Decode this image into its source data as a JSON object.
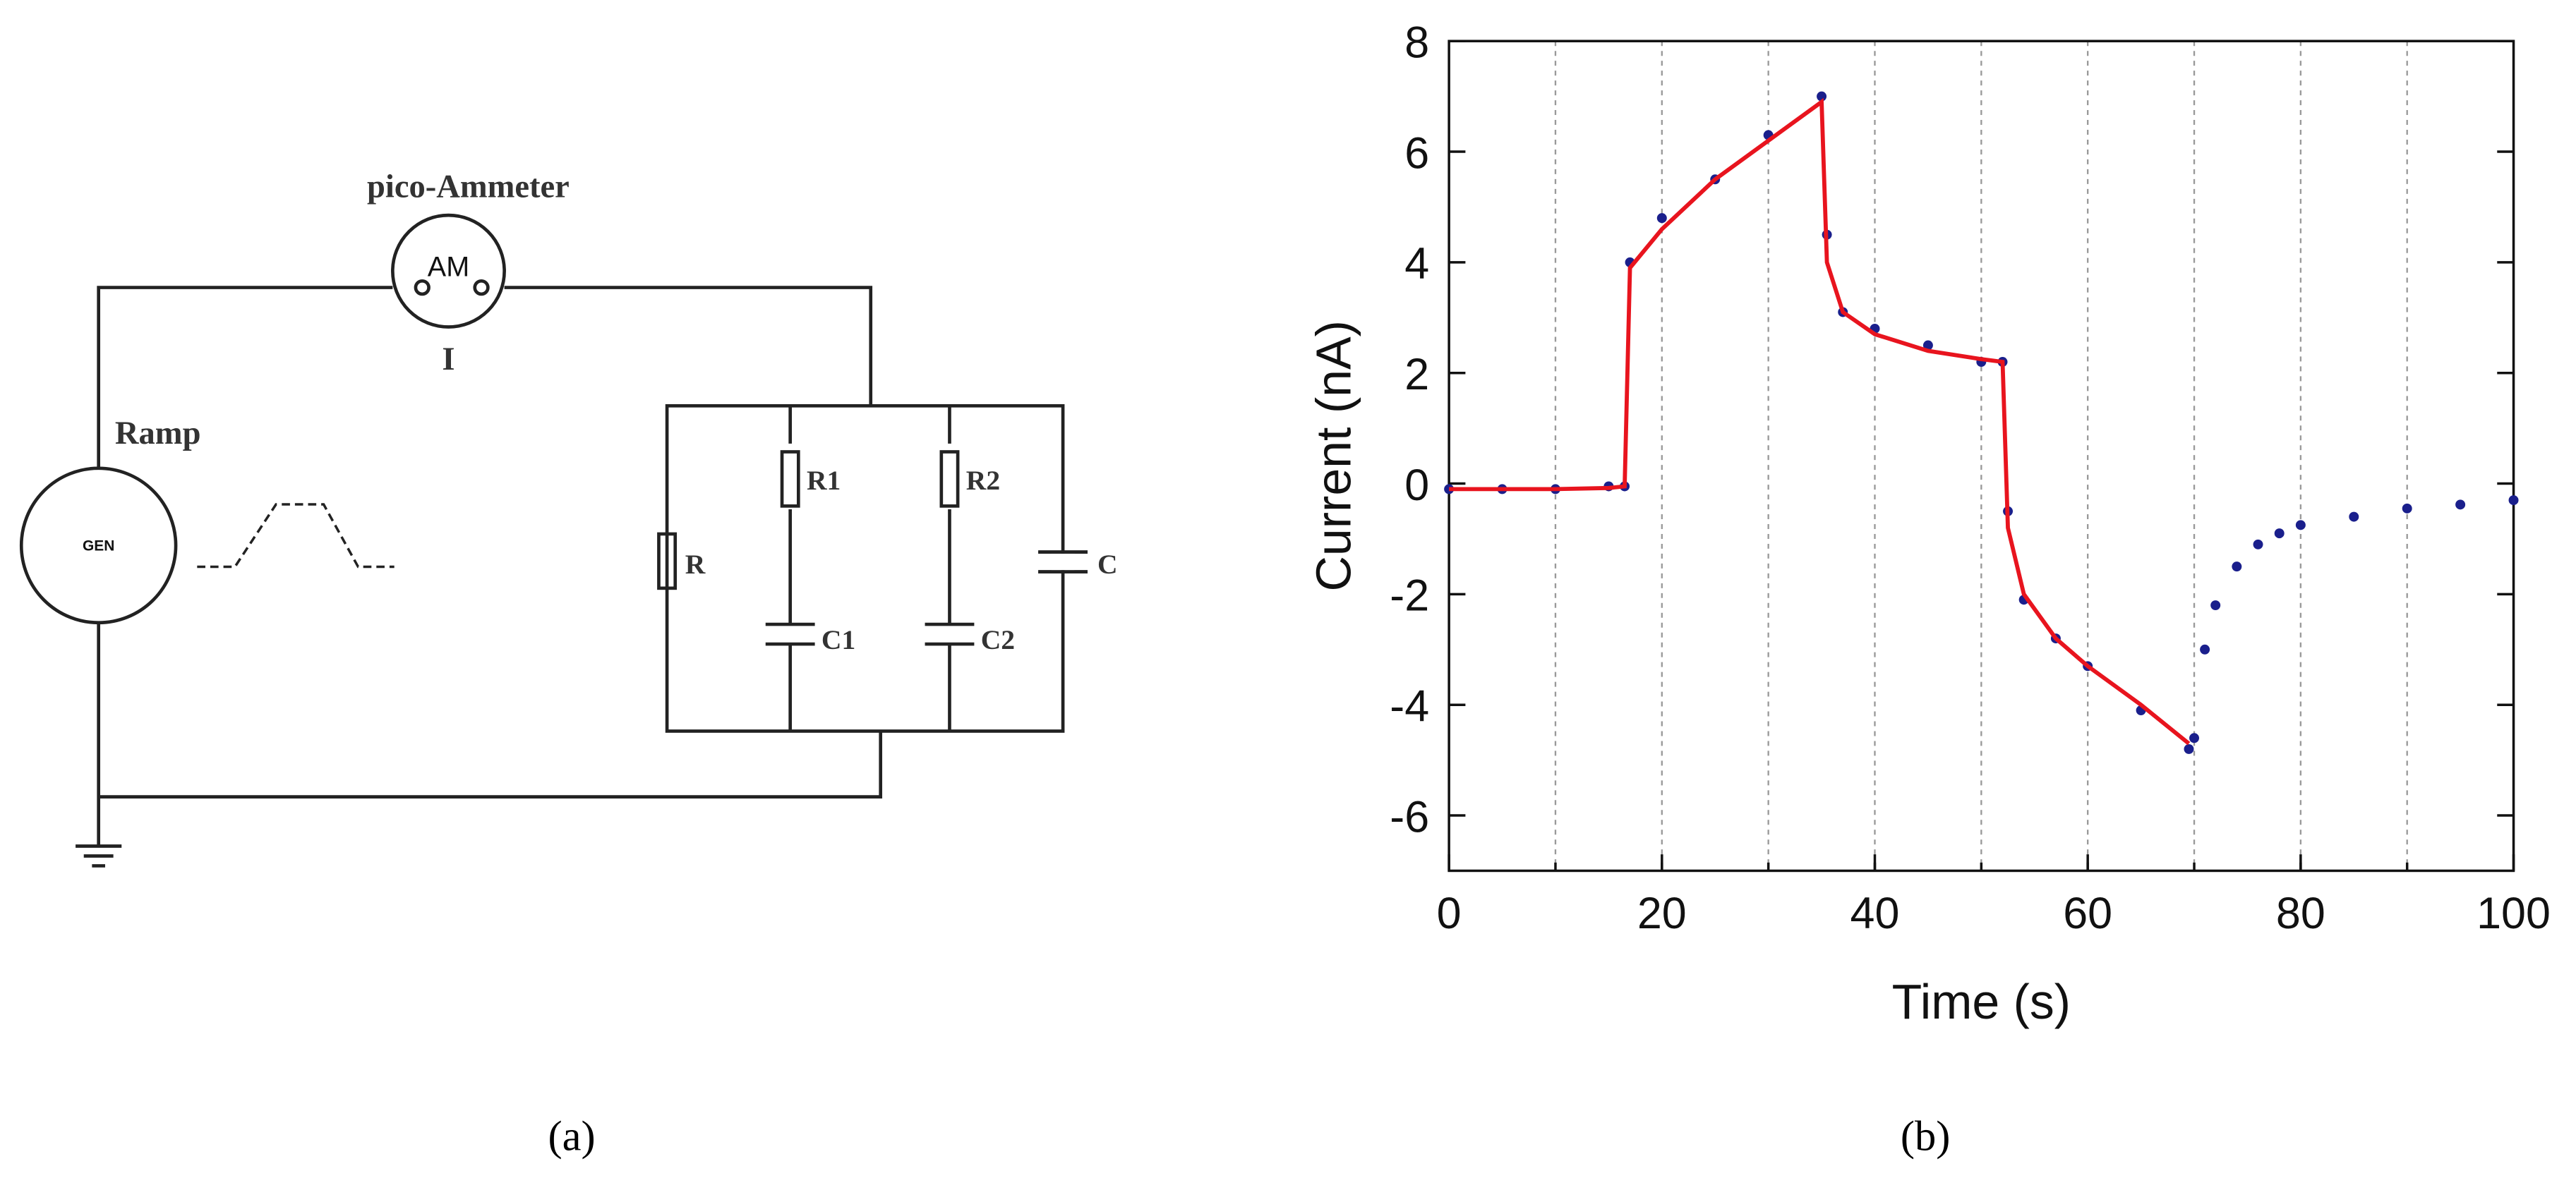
{
  "diagram": {
    "labels": {
      "ammeter": "pico-Ammeter",
      "am": "AM",
      "current": "I",
      "ramp": "Ramp",
      "gen": "GEN",
      "r": "R",
      "r1": "R1",
      "r2": "R2",
      "c": "C",
      "c1": "C1",
      "c2": "C2"
    }
  },
  "panel_labels": [
    "(a)",
    "(b)"
  ],
  "chart_data": {
    "type": "line",
    "x_label": "Time (s)",
    "y_label": "Current (nA)",
    "x": [
      0,
      5,
      10,
      15,
      16.5,
      17,
      20,
      25,
      30,
      35,
      35.5,
      37,
      40,
      45,
      50,
      52,
      52.5,
      54,
      57,
      60,
      65,
      69.5,
      70,
      71,
      72,
      74,
      76,
      78,
      80,
      85,
      90,
      95,
      100
    ],
    "series": [
      {
        "mode": "markers",
        "color": "#1a1f8c",
        "values": [
          -0.1,
          -0.1,
          -0.1,
          -0.05,
          -0.05,
          4.0,
          4.8,
          5.5,
          6.3,
          7.0,
          4.5,
          3.1,
          2.8,
          2.5,
          2.2,
          2.2,
          -0.5,
          -2.1,
          -2.8,
          -3.3,
          -4.1,
          -4.8,
          -4.6,
          -3.0,
          -2.2,
          -1.5,
          -1.1,
          -0.9,
          -0.75,
          -0.6,
          -0.45,
          -0.38,
          -0.3
        ]
      },
      {
        "mode": "line",
        "color": "#e8141e",
        "values": [
          -0.1,
          -0.1,
          -0.1,
          -0.08,
          -0.05,
          3.9,
          4.6,
          5.5,
          6.2,
          6.9,
          4.0,
          3.1,
          2.7,
          2.4,
          2.25,
          2.2,
          -0.8,
          -2.0,
          -2.8,
          -3.3,
          -4.0,
          -4.7,
          null,
          null,
          null,
          null,
          null,
          null,
          null,
          null,
          null,
          null,
          null
        ]
      }
    ],
    "xlim": [
      0,
      100
    ],
    "xticks": [
      0,
      20,
      40,
      60,
      80,
      100
    ],
    "ylim": [
      -7,
      8
    ],
    "yticks": [
      -6,
      -4,
      -2,
      0,
      2,
      4,
      6,
      8
    ],
    "xgrid": [
      10,
      20,
      30,
      40,
      50,
      60,
      70,
      80,
      90
    ]
  }
}
